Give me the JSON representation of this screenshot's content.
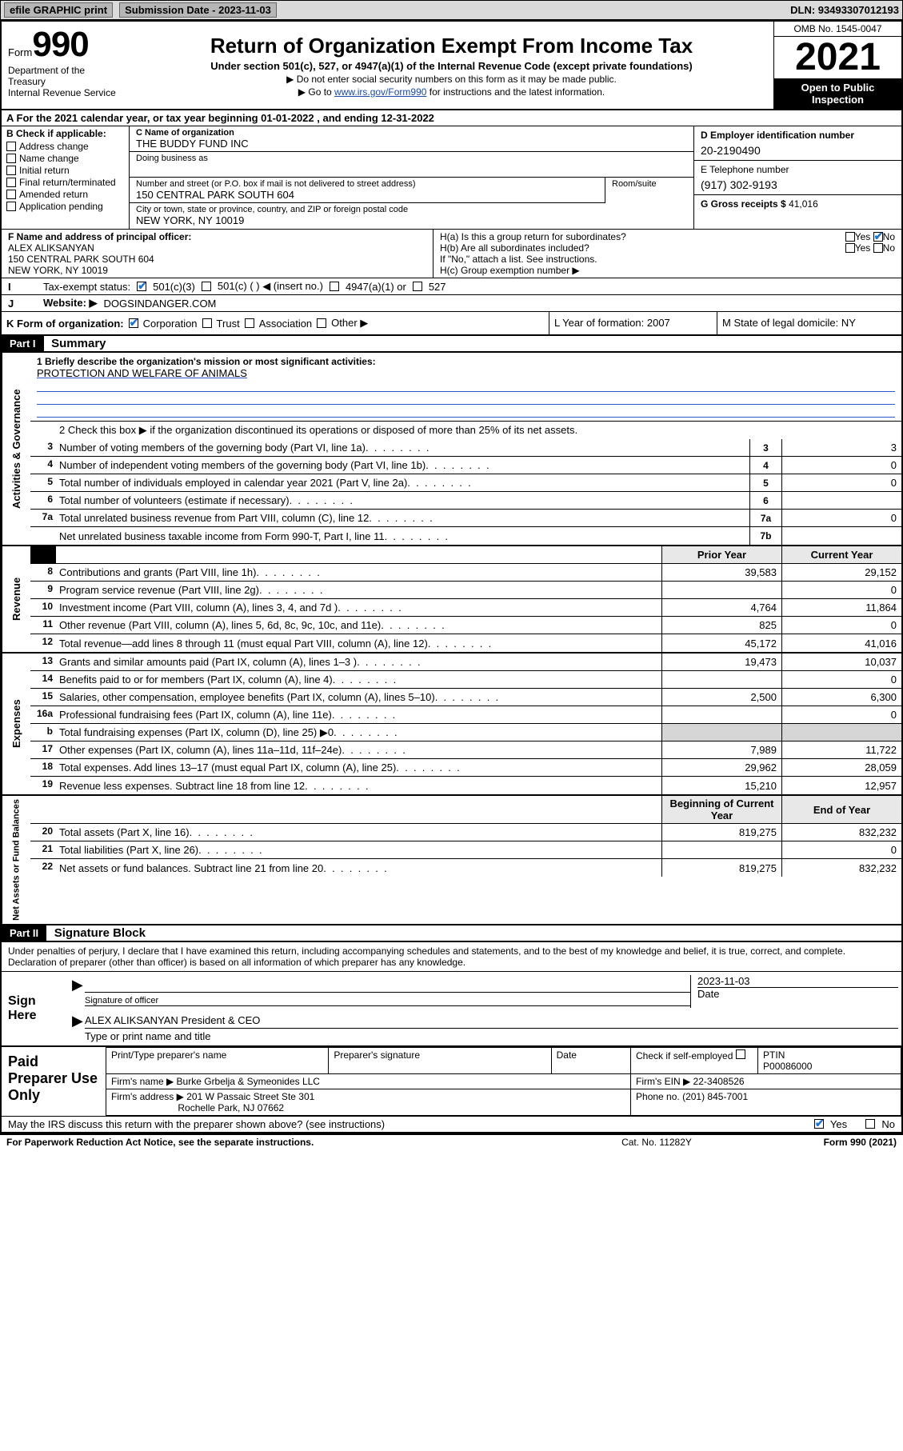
{
  "top_bar": {
    "efile": "efile GRAPHIC print",
    "sub_label": "Submission Date - 2023-11-03",
    "dln": "DLN: 93493307012193"
  },
  "header": {
    "form_word": "Form",
    "form_number": "990",
    "dept": "Department of the Treasury",
    "irs": "Internal Revenue Service",
    "title": "Return of Organization Exempt From Income Tax",
    "sub": "Under section 501(c), 527, or 4947(a)(1) of the Internal Revenue Code (except private foundations)",
    "note1": "▶ Do not enter social security numbers on this form as it may be made public.",
    "note2_pre": "▶ Go to ",
    "note2_link": "www.irs.gov/Form990",
    "note2_post": " for instructions and the latest information.",
    "omb": "OMB No. 1545-0047",
    "year": "2021",
    "open": "Open to Public Inspection"
  },
  "row_a": "A For the 2021 calendar year, or tax year beginning 01-01-2022   , and ending 12-31-2022",
  "section_b": {
    "check_label": "B Check if applicable:",
    "opts": [
      "Address change",
      "Name change",
      "Initial return",
      "Final return/terminated",
      "Amended return",
      "Application pending"
    ],
    "c_label": "C Name of organization",
    "c_val": "THE BUDDY FUND INC",
    "dba_label": "Doing business as",
    "dba_val": "",
    "addr_label": "Number and street (or P.O. box if mail is not delivered to street address)",
    "room_label": "Room/suite",
    "addr_val": "150 CENTRAL PARK SOUTH 604",
    "city_label": "City or town, state or province, country, and ZIP or foreign postal code",
    "city_val": "NEW YORK, NY  10019",
    "d_label": "D Employer identification number",
    "d_val": "20-2190490",
    "e_label": "E Telephone number",
    "e_val": "(917) 302-9193",
    "g_label": "G Gross receipts $",
    "g_val": "41,016"
  },
  "section_fg": {
    "f_label": "F Name and address of principal officer:",
    "f_name": "ALEX ALIKSANYAN",
    "f_addr1": "150 CENTRAL PARK SOUTH 604",
    "f_addr2": "NEW YORK, NY  10019",
    "ha": "H(a)  Is this a group return for subordinates?",
    "hb": "H(b)  Are all subordinates included?",
    "hb_note": "If \"No,\" attach a list. See instructions.",
    "hc": "H(c)  Group exemption number ▶",
    "yes": "Yes",
    "no": "No"
  },
  "row_i": {
    "label": "Tax-exempt status:",
    "o1": "501(c)(3)",
    "o2": "501(c) (  ) ◀ (insert no.)",
    "o3": "4947(a)(1) or",
    "o4": "527"
  },
  "row_j": {
    "label": "Website: ▶",
    "val": "DOGSINDANGER.COM"
  },
  "row_klm": {
    "k": "K Form of organization:",
    "k_opts": [
      "Corporation",
      "Trust",
      "Association",
      "Other ▶"
    ],
    "l": "L Year of formation: 2007",
    "m": "M State of legal domicile: NY"
  },
  "part1": {
    "hdr": "Part I",
    "title": "Summary",
    "mission_label": "1   Briefly describe the organization's mission or most significant activities:",
    "mission_val": "PROTECTION AND WELFARE OF ANIMALS",
    "line2": "2    Check this box ▶         if the organization discontinued its operations or disposed of more than 25% of its net assets.",
    "side_ag": "Activities & Governance",
    "side_rev": "Revenue",
    "side_exp": "Expenses",
    "side_na": "Net Assets or Fund Balances",
    "hdr_prior": "Prior Year",
    "hdr_curr": "Current Year",
    "hdr_beg": "Beginning of Current Year",
    "hdr_end": "End of Year",
    "rows_ag": [
      {
        "n": "3",
        "d": "Number of voting members of the governing body (Part VI, line 1a)",
        "box": "3",
        "v": "3"
      },
      {
        "n": "4",
        "d": "Number of independent voting members of the governing body (Part VI, line 1b)",
        "box": "4",
        "v": "0"
      },
      {
        "n": "5",
        "d": "Total number of individuals employed in calendar year 2021 (Part V, line 2a)",
        "box": "5",
        "v": "0"
      },
      {
        "n": "6",
        "d": "Total number of volunteers (estimate if necessary)",
        "box": "6",
        "v": ""
      },
      {
        "n": "7a",
        "d": "Total unrelated business revenue from Part VIII, column (C), line 12",
        "box": "7a",
        "v": "0"
      },
      {
        "n": "",
        "d": "Net unrelated business taxable income from Form 990-T, Part I, line 11",
        "box": "7b",
        "v": ""
      }
    ],
    "rows_rev": [
      {
        "n": "8",
        "d": "Contributions and grants (Part VIII, line 1h)",
        "p": "39,583",
        "c": "29,152"
      },
      {
        "n": "9",
        "d": "Program service revenue (Part VIII, line 2g)",
        "p": "",
        "c": "0"
      },
      {
        "n": "10",
        "d": "Investment income (Part VIII, column (A), lines 3, 4, and 7d )",
        "p": "4,764",
        "c": "11,864"
      },
      {
        "n": "11",
        "d": "Other revenue (Part VIII, column (A), lines 5, 6d, 8c, 9c, 10c, and 11e)",
        "p": "825",
        "c": "0"
      },
      {
        "n": "12",
        "d": "Total revenue—add lines 8 through 11 (must equal Part VIII, column (A), line 12)",
        "p": "45,172",
        "c": "41,016"
      }
    ],
    "rows_exp": [
      {
        "n": "13",
        "d": "Grants and similar amounts paid (Part IX, column (A), lines 1–3 )",
        "p": "19,473",
        "c": "10,037"
      },
      {
        "n": "14",
        "d": "Benefits paid to or for members (Part IX, column (A), line 4)",
        "p": "",
        "c": "0"
      },
      {
        "n": "15",
        "d": "Salaries, other compensation, employee benefits (Part IX, column (A), lines 5–10)",
        "p": "2,500",
        "c": "6,300"
      },
      {
        "n": "16a",
        "d": "Professional fundraising fees (Part IX, column (A), line 11e)",
        "p": "",
        "c": "0"
      },
      {
        "n": "b",
        "d": "Total fundraising expenses (Part IX, column (D), line 25) ▶0",
        "p": "SHADE",
        "c": "SHADE"
      },
      {
        "n": "17",
        "d": "Other expenses (Part IX, column (A), lines 11a–11d, 11f–24e)",
        "p": "7,989",
        "c": "11,722"
      },
      {
        "n": "18",
        "d": "Total expenses. Add lines 13–17 (must equal Part IX, column (A), line 25)",
        "p": "29,962",
        "c": "28,059"
      },
      {
        "n": "19",
        "d": "Revenue less expenses. Subtract line 18 from line 12",
        "p": "15,210",
        "c": "12,957"
      }
    ],
    "rows_na": [
      {
        "n": "20",
        "d": "Total assets (Part X, line 16)",
        "p": "819,275",
        "c": "832,232"
      },
      {
        "n": "21",
        "d": "Total liabilities (Part X, line 26)",
        "p": "",
        "c": "0"
      },
      {
        "n": "22",
        "d": "Net assets or fund balances. Subtract line 21 from line 20",
        "p": "819,275",
        "c": "832,232"
      }
    ]
  },
  "part2": {
    "hdr": "Part II",
    "title": "Signature Block",
    "decl": "Under penalties of perjury, I declare that I have examined this return, including accompanying schedules and statements, and to the best of my knowledge and belief, it is true, correct, and complete. Declaration of preparer (other than officer) is based on all information of which preparer has any knowledge.",
    "sign_here": "Sign Here",
    "sig_of_officer": "Signature of officer",
    "date_lab": "Date",
    "date_val": "2023-11-03",
    "officer_name": "ALEX ALIKSANYAN  President & CEO",
    "type_name": "Type or print name and title",
    "paid": "Paid Preparer Use Only",
    "prep_name_lab": "Print/Type preparer's name",
    "prep_sig_lab": "Preparer's signature",
    "check_self": "Check          if self-employed",
    "ptin_lab": "PTIN",
    "ptin_val": "P00086000",
    "firm_name_lab": "Firm's name    ▶",
    "firm_name": "Burke Grbelja & Symeonides LLC",
    "firm_ein_lab": "Firm's EIN ▶",
    "firm_ein": "22-3408526",
    "firm_addr_lab": "Firm's address ▶",
    "firm_addr1": "201 W Passaic Street Ste 301",
    "firm_addr2": "Rochelle Park, NJ  07662",
    "phone_lab": "Phone no.",
    "phone_val": "(201) 845-7001",
    "discuss": "May the IRS discuss this return with the preparer shown above? (see instructions)",
    "yes": "Yes",
    "no": "No"
  },
  "footer": {
    "pra": "For Paperwork Reduction Act Notice, see the separate instructions.",
    "cat": "Cat. No. 11282Y",
    "form": "Form 990 (2021)"
  }
}
